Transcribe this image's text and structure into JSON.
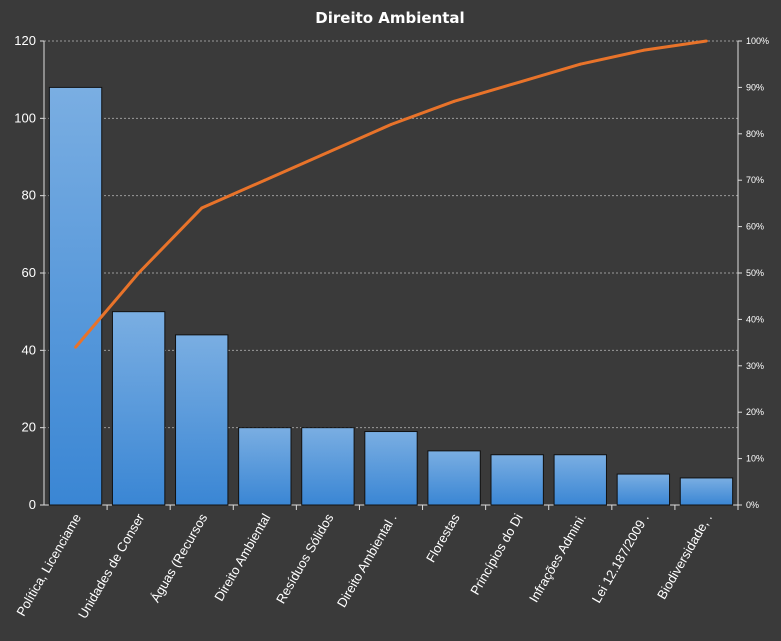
{
  "chart_data": {
    "type": "bar",
    "title": "Direito  Ambiental",
    "categories": [
      "Política, Licenciame",
      "Unidades de Conser",
      "Águas (Recursos",
      "Direito Ambiental",
      "Resíduos Sólidos",
      "Direito Ambiental .",
      "Florestas",
      "Princípios do Di",
      "Infrações Admini.",
      "Lei 12.187/2009 .",
      "Biodiversidade, ."
    ],
    "series": [
      {
        "type": "bar",
        "values": [
          108,
          50,
          44,
          20,
          20,
          19,
          14,
          13,
          13,
          8,
          7
        ]
      },
      {
        "type": "line",
        "axis": "secondary",
        "values": [
          34,
          50,
          64,
          70,
          76,
          82,
          87,
          91,
          95,
          98,
          100
        ]
      }
    ],
    "y_axis": {
      "min": 0,
      "max": 120,
      "ticks": [
        0,
        20,
        40,
        60,
        80,
        100,
        120
      ]
    },
    "y2_axis": {
      "min": 0,
      "max": 100,
      "ticks": [
        "0%",
        "10%",
        "20%",
        "30%",
        "40%",
        "50%",
        "60%",
        "70%",
        "80%",
        "90%",
        "100%"
      ]
    },
    "grid": true,
    "legend": "none",
    "colors": {
      "background": "#3a3a3a",
      "bar_top": "#7aaee2",
      "bar_bottom": "#3a86d4",
      "bar_edge": "#111111",
      "line": "#e8732a",
      "grid": "#9a9a9a",
      "axis": "#dddddd",
      "text": "#ffffff"
    }
  }
}
